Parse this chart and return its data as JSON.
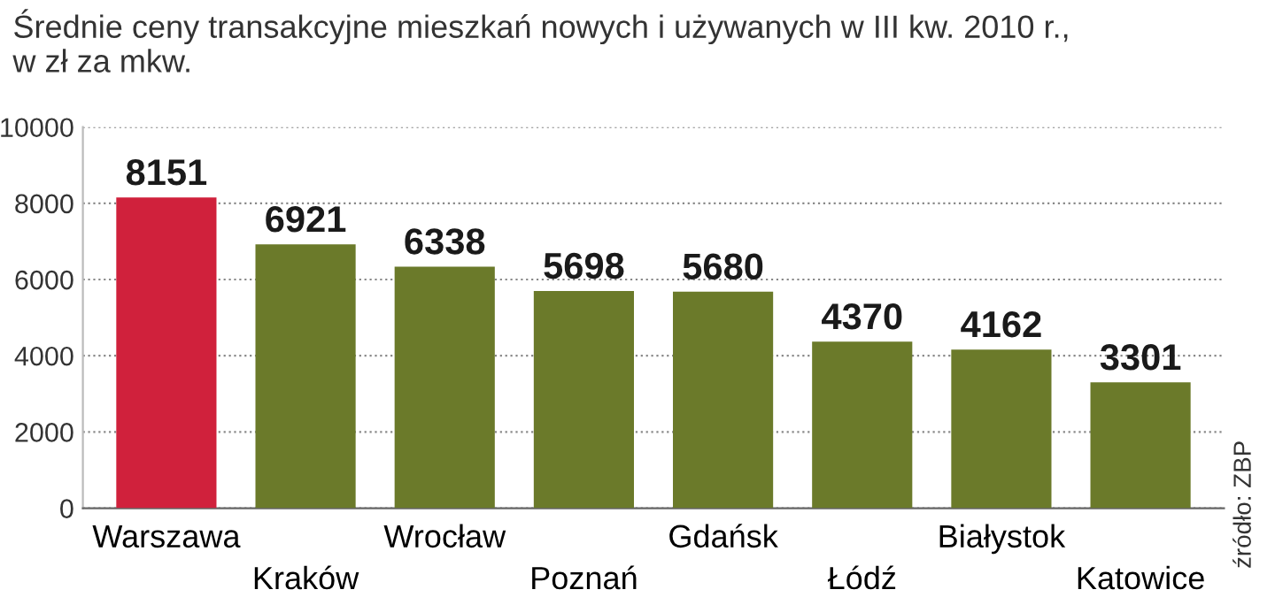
{
  "chart_data": {
    "type": "bar",
    "title": "Średnie ceny transakcyjne mieszkań nowych i używanych w III kw. 2010 r.,\nw zł za mkw.",
    "categories": [
      "Warszawa",
      "Kraków",
      "Wrocław",
      "Poznań",
      "Gdańsk",
      "Łódź",
      "Białystok",
      "Katowice"
    ],
    "values": [
      8151,
      6921,
      6338,
      5698,
      5680,
      4370,
      4162,
      3301
    ],
    "colors": [
      "#d0213c",
      "#6b7a2a",
      "#6b7a2a",
      "#6b7a2a",
      "#6b7a2a",
      "#6b7a2a",
      "#6b7a2a",
      "#6b7a2a"
    ],
    "ylim": [
      0,
      10000
    ],
    "yticks": [
      0,
      2000,
      4000,
      6000,
      8000,
      10000
    ],
    "grid": "y",
    "data_labels": true,
    "annotations": [
      "źródło: ZBP"
    ]
  }
}
